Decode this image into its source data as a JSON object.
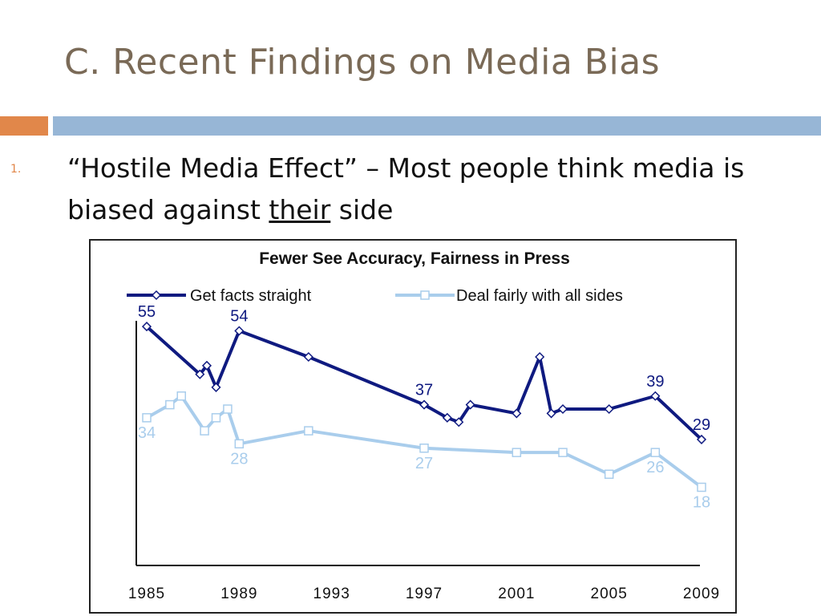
{
  "slide": {
    "title": "C. Recent Findings on Media Bias",
    "bullet_number": "1.",
    "bullet_text_part1": "“Hostile Media Effect” – Most people think media is biased against ",
    "bullet_text_emphasis": "their",
    "bullet_text_part2": " side"
  },
  "colors": {
    "accent_orange": "#e1874a",
    "accent_blue": "#97b6d6",
    "title": "#7a6a57",
    "series_dark": "#0f1a80",
    "series_light": "#a9cdec"
  },
  "chart_data": {
    "type": "line",
    "title": "Fewer See Accuracy, Fairness in Press",
    "legend_placement": "top",
    "xlim": [
      1985,
      2009
    ],
    "ylim": [
      0,
      60
    ],
    "xticks": [
      "1985",
      "1989",
      "1993",
      "1997",
      "2001",
      "2005",
      "2009"
    ],
    "series": [
      {
        "name": "Get facts straight",
        "color": "#0f1a80",
        "marker": "diamond",
        "x": [
          1985,
          1987.3,
          1987.6,
          1988,
          1989,
          1992,
          1997,
          1998,
          1998.5,
          1999,
          2001,
          2002,
          2002.5,
          2003,
          2005,
          2007,
          2009
        ],
        "y": [
          55,
          44,
          46,
          41,
          54,
          48,
          37,
          34,
          33,
          37,
          35,
          48,
          35,
          36,
          36,
          39,
          29
        ]
      },
      {
        "name": "Deal fairly with all sides",
        "color": "#a9cdec",
        "marker": "square",
        "x": [
          1985,
          1986,
          1986.5,
          1987.5,
          1988,
          1988.5,
          1989,
          1992,
          1997,
          2001,
          2003,
          2005,
          2007,
          2009
        ],
        "y": [
          34,
          37,
          39,
          31,
          34,
          36,
          28,
          31,
          27,
          26,
          26,
          21,
          26,
          18
        ]
      }
    ],
    "data_labels": [
      {
        "series": 0,
        "x": 1985,
        "y": 55,
        "text": "55"
      },
      {
        "series": 0,
        "x": 1989,
        "y": 54,
        "text": "54"
      },
      {
        "series": 0,
        "x": 1997,
        "y": 37,
        "text": "37"
      },
      {
        "series": 0,
        "x": 2007,
        "y": 39,
        "text": "39"
      },
      {
        "series": 0,
        "x": 2009,
        "y": 29,
        "text": "29"
      },
      {
        "series": 1,
        "x": 1985,
        "y": 34,
        "text": "34"
      },
      {
        "series": 1,
        "x": 1989,
        "y": 28,
        "text": "28"
      },
      {
        "series": 1,
        "x": 1997,
        "y": 27,
        "text": "27"
      },
      {
        "series": 1,
        "x": 2007,
        "y": 26,
        "text": "26"
      },
      {
        "series": 1,
        "x": 2009,
        "y": 18,
        "text": "18"
      }
    ]
  }
}
